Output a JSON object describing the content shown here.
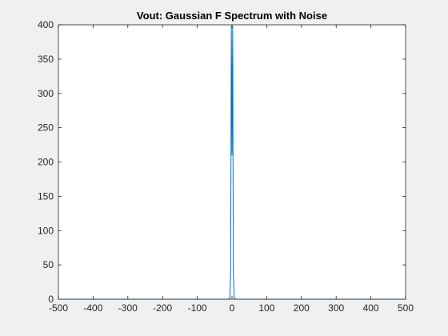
{
  "chart_data": {
    "type": "line",
    "title": "Vout: Gaussian F Spectrum with Noise",
    "xlabel": "",
    "ylabel": "",
    "xlim": [
      -500,
      500
    ],
    "ylim": [
      0,
      400
    ],
    "xticks": [
      -500,
      -400,
      -300,
      -200,
      -100,
      0,
      100,
      200,
      300,
      400,
      500
    ],
    "yticks": [
      0,
      50,
      100,
      150,
      200,
      250,
      300,
      350,
      400
    ],
    "grid": false,
    "series": [
      {
        "color": "#0072BD",
        "x": [
          -500,
          -10,
          -6,
          -4,
          -3,
          -2,
          -1,
          0,
          1,
          2,
          3,
          4,
          6,
          10,
          500
        ],
        "y": [
          0,
          0,
          2,
          40,
          190,
          398,
          320,
          210,
          320,
          398,
          190,
          40,
          2,
          0,
          0
        ]
      }
    ]
  }
}
